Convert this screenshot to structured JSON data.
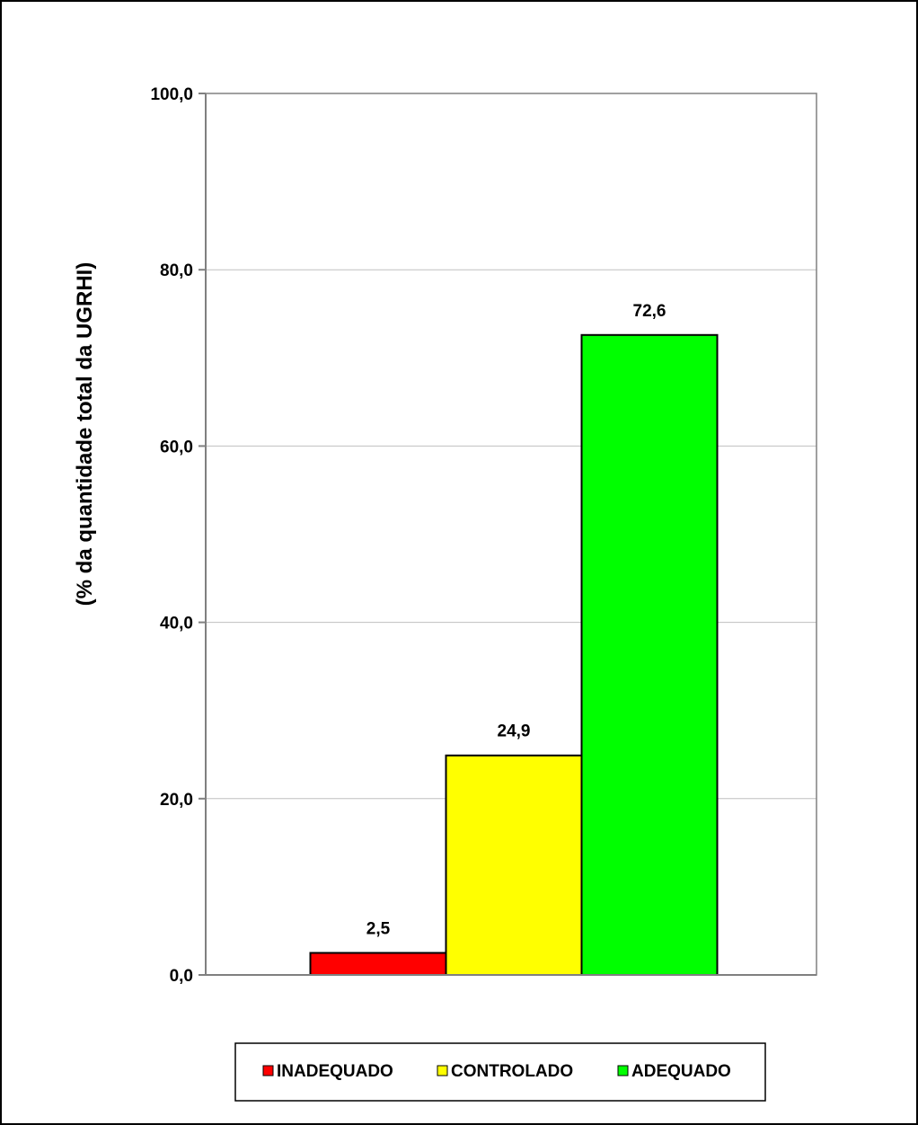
{
  "chart_data": {
    "type": "bar",
    "categories": [
      "INADEQUADO",
      "CONTROLADO",
      "ADEQUADO"
    ],
    "values": [
      2.5,
      24.9,
      72.6
    ],
    "data_labels": [
      "2,5",
      "24,9",
      "72,6"
    ],
    "colors": [
      "#ff0000",
      "#ffff00",
      "#00ff00"
    ],
    "title": "",
    "xlabel": "",
    "ylabel": "(% da quantidade total da UGRHI)",
    "ylim": [
      0,
      100
    ],
    "yticks": [
      0,
      20,
      40,
      60,
      80,
      100
    ],
    "ytick_labels": [
      "0,0",
      "20,0",
      "40,0",
      "60,0",
      "80,0",
      "100,0"
    ],
    "grid": true,
    "legend": {
      "position": "bottom",
      "entries": [
        "INADEQUADO",
        "CONTROLADO",
        "ADEQUADO"
      ]
    }
  }
}
